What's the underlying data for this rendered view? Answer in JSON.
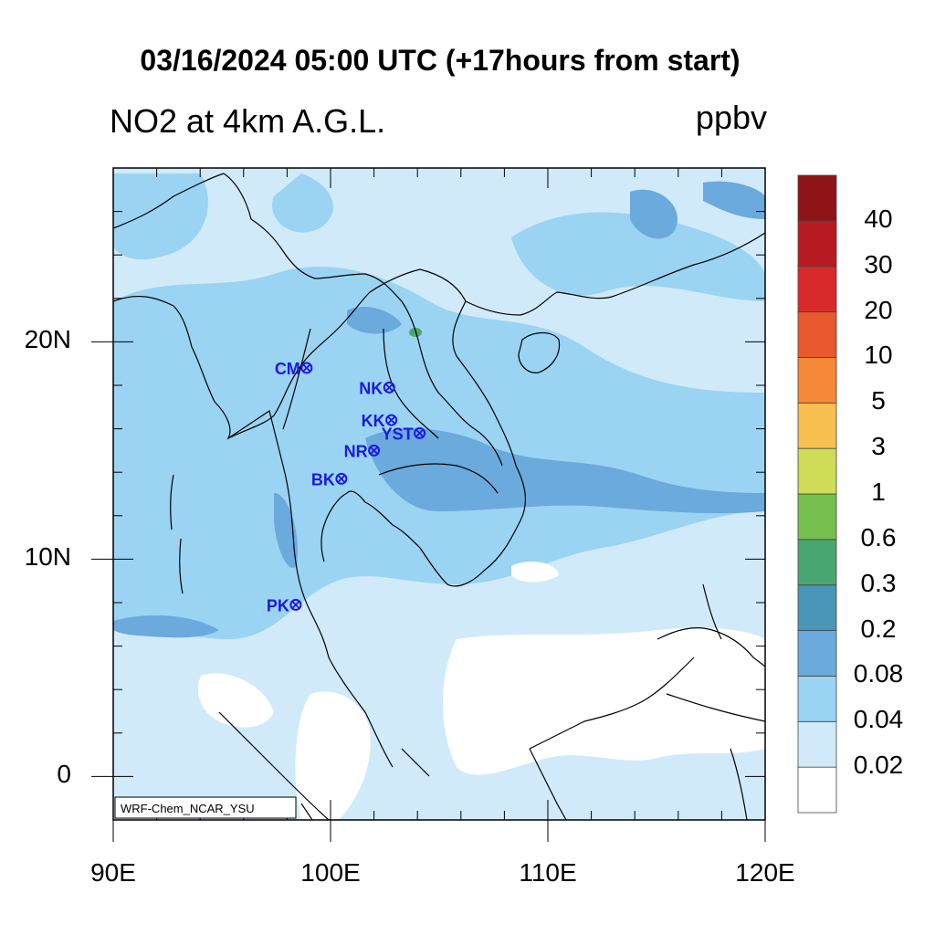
{
  "title": "03/16/2024 05:00 UTC (+17hours from start)",
  "field_title": "NO2 at 4km A.G.L.",
  "units": "ppbv",
  "credit": "WRF-Chem_NCAR_YSU",
  "map": {
    "lat_range": [
      -2,
      28
    ],
    "lon_range": [
      90,
      120
    ],
    "lat_ticks": [
      {
        "value": 20,
        "label": "20N"
      },
      {
        "value": 10,
        "label": "10N"
      },
      {
        "value": 0,
        "label": "0"
      }
    ],
    "lon_ticks": [
      {
        "value": 90,
        "label": "90E"
      },
      {
        "value": 100,
        "label": "100E"
      },
      {
        "value": 110,
        "label": "110E"
      },
      {
        "value": 120,
        "label": "120E"
      }
    ]
  },
  "stations": [
    {
      "code": "CM",
      "lon": 98.9,
      "lat": 18.8
    },
    {
      "code": "NK",
      "lon": 102.7,
      "lat": 17.9
    },
    {
      "code": "KK",
      "lon": 102.8,
      "lat": 16.4
    },
    {
      "code": "YST",
      "lon": 104.1,
      "lat": 15.8
    },
    {
      "code": "NR",
      "lon": 102.0,
      "lat": 15.0
    },
    {
      "code": "BK",
      "lon": 100.5,
      "lat": 13.7
    },
    {
      "code": "PK",
      "lon": 98.4,
      "lat": 7.9
    }
  ],
  "station_color": "#1a1ae6",
  "colorbar": {
    "levels": [
      "0.02",
      "0.04",
      "0.08",
      "0.2",
      "0.3",
      "0.6",
      "1",
      "3",
      "5",
      "10",
      "20",
      "30",
      "40"
    ],
    "colors": [
      "#ffffff",
      "#d0eaf9",
      "#9bd3f2",
      "#6aaadc",
      "#4a96b8",
      "#4aa670",
      "#76c050",
      "#cfdc58",
      "#f8c050",
      "#f48838",
      "#e8582e",
      "#d82a2a",
      "#b81c22",
      "#8e1418"
    ]
  },
  "colors": {
    "sea_bg": "#d0eaf9",
    "band_light": "#d0eaf9",
    "band_mid": "#9bd3f2",
    "band_dark": "#6aaadc",
    "band_clean": "#ffffff",
    "hotspot": "#4aa670"
  }
}
